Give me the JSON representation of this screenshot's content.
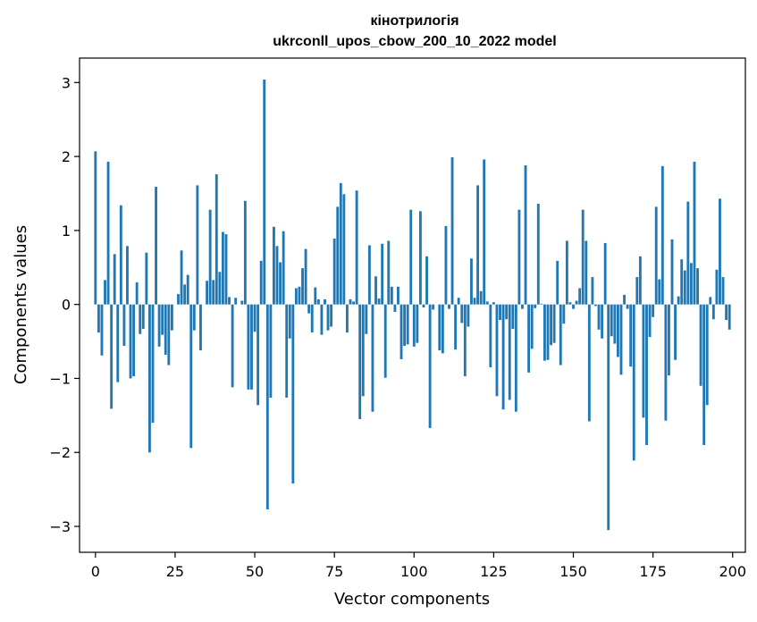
{
  "chart_data": {
    "type": "bar",
    "title": "кінотрилогія",
    "subtitle": "ukrconll_upos_cbow_200_10_2022 model",
    "xlabel": "Vector components",
    "ylabel": "Components values",
    "xlim": [
      -5,
      204
    ],
    "ylim": [
      -3.35,
      3.33
    ],
    "xticks": [
      0,
      25,
      50,
      75,
      100,
      125,
      150,
      175,
      200
    ],
    "yticks": [
      -3,
      -2,
      -1,
      0,
      1,
      2,
      3
    ],
    "bar_color": "#1f77b4",
    "grid": false,
    "values": [
      2.07,
      -0.38,
      -0.69,
      0.33,
      1.93,
      -1.41,
      0.68,
      -1.05,
      1.34,
      -0.56,
      0.79,
      -1.0,
      -0.97,
      0.3,
      -0.4,
      -0.33,
      0.7,
      -2.0,
      -1.6,
      1.59,
      -0.57,
      -0.41,
      -0.68,
      -0.82,
      -0.35,
      0.0,
      0.14,
      0.73,
      0.27,
      0.4,
      -1.94,
      -0.35,
      1.61,
      -0.62,
      0.0,
      0.32,
      1.28,
      0.33,
      1.76,
      0.44,
      0.98,
      0.95,
      0.1,
      -1.12,
      0.09,
      0.0,
      0.05,
      1.4,
      -1.15,
      -1.15,
      -0.37,
      -1.36,
      0.59,
      3.04,
      -2.77,
      -1.26,
      1.05,
      0.79,
      0.57,
      0.99,
      -1.26,
      -0.46,
      -2.42,
      0.22,
      0.24,
      0.49,
      0.75,
      -0.12,
      -0.38,
      0.23,
      0.07,
      -0.41,
      0.07,
      -0.35,
      -0.3,
      0.89,
      1.32,
      1.64,
      1.49,
      -0.38,
      0.07,
      0.04,
      1.54,
      -1.55,
      -1.24,
      -0.4,
      0.8,
      -1.45,
      0.38,
      0.08,
      0.82,
      -0.99,
      0.86,
      0.24,
      -0.1,
      0.24,
      -0.74,
      -0.56,
      -0.54,
      1.28,
      -0.57,
      -0.52,
      1.26,
      -0.04,
      0.65,
      -1.67,
      -0.07,
      0.0,
      -0.62,
      -0.66,
      1.06,
      -0.06,
      1.99,
      -0.61,
      0.09,
      -0.25,
      -0.97,
      -0.3,
      0.62,
      0.09,
      1.61,
      0.18,
      1.96,
      0.04,
      -0.85,
      0.03,
      -1.24,
      -0.21,
      -1.42,
      -0.2,
      -1.29,
      -0.33,
      -1.45,
      1.28,
      -0.06,
      1.88,
      -0.92,
      -0.6,
      -0.05,
      1.36,
      0.01,
      -0.76,
      -0.75,
      -0.55,
      -0.52,
      0.59,
      -0.82,
      -0.26,
      0.86,
      0.03,
      -0.06,
      0.05,
      0.22,
      1.28,
      0.86,
      -1.58,
      0.37,
      -0.02,
      -0.34,
      -0.46,
      0.83,
      -3.05,
      -0.43,
      -0.53,
      -0.71,
      -0.95,
      0.13,
      -0.06,
      -0.84,
      -2.11,
      0.37,
      0.65,
      -1.53,
      -1.9,
      -0.44,
      -0.17,
      1.32,
      0.34,
      1.87,
      -1.57,
      -0.96,
      0.88,
      -0.75,
      0.11,
      0.61,
      0.46,
      1.39,
      0.56,
      1.93,
      0.49,
      -1.1,
      -1.9,
      -1.36,
      0.1,
      -0.2,
      0.47,
      1.43,
      0.37,
      -0.21,
      -0.34
    ]
  }
}
